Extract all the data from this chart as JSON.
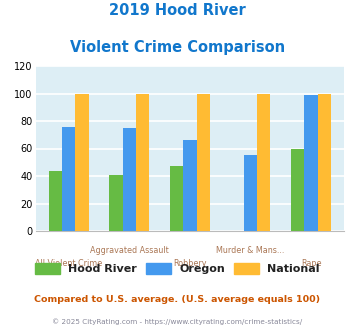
{
  "title_line1": "2019 Hood River",
  "title_line2": "Violent Crime Comparison",
  "categories": [
    "All Violent Crime",
    "Aggravated Assault",
    "Robbery",
    "Murder & Mans...",
    "Rape"
  ],
  "series": {
    "Hood River": [
      44,
      41,
      47,
      0,
      60
    ],
    "Oregon": [
      76,
      75,
      66,
      55,
      99
    ],
    "National": [
      100,
      100,
      100,
      100,
      100
    ]
  },
  "colors": {
    "Hood River": "#66bb44",
    "Oregon": "#4499ee",
    "National": "#ffbb33"
  },
  "ylim": [
    0,
    120
  ],
  "yticks": [
    0,
    20,
    40,
    60,
    80,
    100,
    120
  ],
  "background_color": "#ddeef5",
  "grid_color": "#ffffff",
  "title_color": "#1177cc",
  "xlabel_color": "#aa7755",
  "legend_label_color": "#222222",
  "footnote1": "Compared to U.S. average. (U.S. average equals 100)",
  "footnote2": "© 2025 CityRating.com - https://www.cityrating.com/crime-statistics/",
  "footnote1_color": "#cc5500",
  "footnote2_color": "#888899",
  "bar_width": 0.22
}
